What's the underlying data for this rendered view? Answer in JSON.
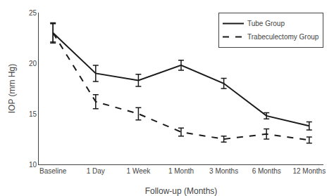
{
  "chart_data": {
    "type": "line",
    "categories": [
      "Baseline",
      "1 Day",
      "1 Week",
      "1 Month",
      "3 Months",
      "6 Months",
      "12 Months"
    ],
    "series": [
      {
        "name": "Tube Group",
        "color": "#1a1a1a",
        "line_style": "solid",
        "values": [
          23.0,
          19.0,
          18.3,
          19.8,
          18.0,
          14.8,
          13.8
        ],
        "error": [
          0.9,
          0.8,
          0.6,
          0.5,
          0.5,
          0.3,
          0.4
        ]
      },
      {
        "name": "Trabeculectomy Group",
        "color": "#1a1a1a",
        "line_style": "dashed",
        "values": [
          23.0,
          16.2,
          15.0,
          13.2,
          12.5,
          13.0,
          12.4
        ],
        "error": [
          1.0,
          0.7,
          0.6,
          0.4,
          0.3,
          0.5,
          0.3
        ]
      }
    ],
    "xlabel": "Follow-up (Months)",
    "ylabel": "IOP (mm Hg)",
    "ylim": [
      10,
      25
    ],
    "yticks": [
      10,
      15,
      20,
      25
    ],
    "grid": false,
    "legend": "upper right"
  }
}
